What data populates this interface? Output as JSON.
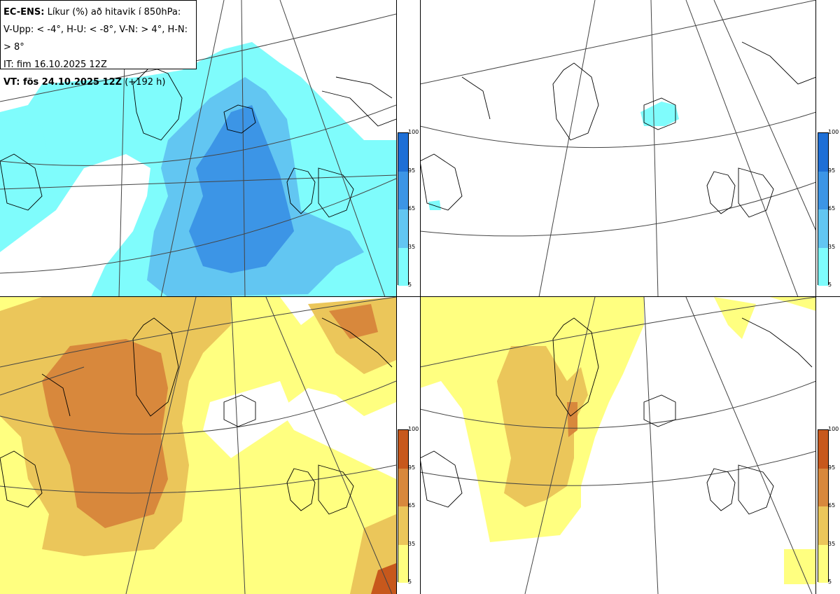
{
  "header": {
    "model": "EC-ENS:",
    "description": "Líkur (%) að hitavik í 850hPa:",
    "thresholds": "V-Upp: < -4°, H-U: < -8°, V-N: > 4°, H-N: > 8°",
    "init_time": "IT: fim 16.10.2025 12Z",
    "valid_prefix": "VT: fös 24.10.2025 12Z",
    "lead": "(+192 h)"
  },
  "colorbars": {
    "ticks": [
      "100",
      "95",
      "65",
      "35",
      "5"
    ],
    "cold_colors": [
      "#1e6fd6",
      "#3c95e6",
      "#62c6f2",
      "#7ffcfc"
    ],
    "warm_colors": [
      "#c7581c",
      "#d8883c",
      "#ebc65a",
      "#ffff80"
    ]
  },
  "panels": [
    {
      "id": "cold-4",
      "scale": "cold"
    },
    {
      "id": "cold-8",
      "scale": "cold"
    },
    {
      "id": "warm-4",
      "scale": "warm"
    },
    {
      "id": "warm-8",
      "scale": "warm"
    }
  ]
}
